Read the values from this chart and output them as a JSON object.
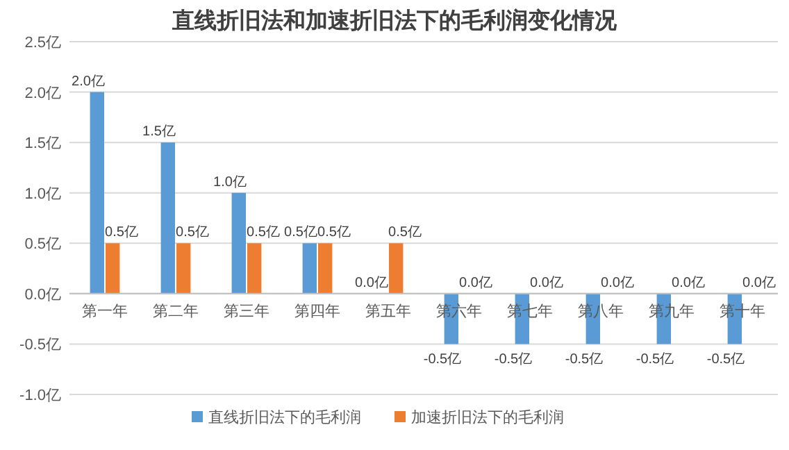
{
  "chart_data": {
    "type": "bar",
    "title": "直线折旧法和加速折旧法下的毛利润变化情况",
    "categories": [
      "第一年",
      "第二年",
      "第三年",
      "第四年",
      "第五年",
      "第六年",
      "第七年",
      "第八年",
      "第九年",
      "第十年"
    ],
    "series": [
      {
        "name": "直线折旧法下的毛利润",
        "color": "#5b9bd5",
        "values": [
          2.0,
          1.5,
          1.0,
          0.5,
          0.0,
          -0.5,
          -0.5,
          -0.5,
          -0.5,
          -0.5
        ],
        "value_labels": [
          "2.0亿",
          "1.5亿",
          "1.0亿",
          "0.5亿",
          "0.0亿",
          "-0.5亿",
          "-0.5亿",
          "-0.5亿",
          "-0.5亿",
          "-0.5亿"
        ]
      },
      {
        "name": "加速折旧法下的毛利润",
        "color": "#ed7d31",
        "values": [
          0.5,
          0.5,
          0.5,
          0.5,
          0.5,
          0.0,
          0.0,
          0.0,
          0.0,
          0.0
        ],
        "value_labels": [
          "0.5亿",
          "0.5亿",
          "0.5亿",
          "0.5亿",
          "0.5亿",
          "0.0亿",
          "0.0亿",
          "0.0亿",
          "0.0亿",
          "0.0亿"
        ]
      }
    ],
    "ylim": [
      -1.0,
      2.5
    ],
    "yticks": [
      {
        "value": -1.0,
        "label": "-1.0亿"
      },
      {
        "value": -0.5,
        "label": "-0.5亿"
      },
      {
        "value": 0.0,
        "label": "0.0亿"
      },
      {
        "value": 0.5,
        "label": "0.5亿"
      },
      {
        "value": 1.0,
        "label": "1.0亿"
      },
      {
        "value": 1.5,
        "label": "1.5亿"
      },
      {
        "value": 2.0,
        "label": "2.0亿"
      },
      {
        "value": 2.5,
        "label": "2.5亿"
      }
    ],
    "grid": "y",
    "legend": "bottom"
  }
}
